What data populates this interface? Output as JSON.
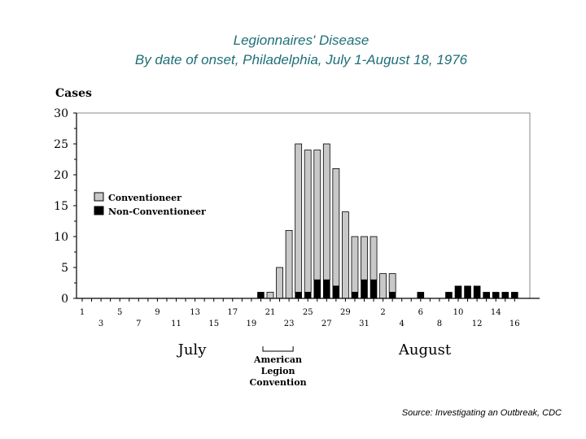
{
  "title": "Legionnaires' Disease",
  "subtitle": "By date of onset, Philadelphia, July 1-August 18, 1976",
  "source": "Source:  Investigating an Outbreak, CDC",
  "chart_data": {
    "type": "bar",
    "stacked": true,
    "ylabel": "Cases",
    "ylim": [
      0,
      30
    ],
    "yticks": [
      "0",
      "5",
      "10",
      "15",
      "20",
      "25",
      "30"
    ],
    "x_days": [
      "Jul 1",
      "Jul 2",
      "Jul 3",
      "Jul 4",
      "Jul 5",
      "Jul 6",
      "Jul 7",
      "Jul 8",
      "Jul 9",
      "Jul 10",
      "Jul 11",
      "Jul 12",
      "Jul 13",
      "Jul 14",
      "Jul 15",
      "Jul 16",
      "Jul 17",
      "Jul 18",
      "Jul 19",
      "Jul 20",
      "Jul 21",
      "Jul 22",
      "Jul 23",
      "Jul 24",
      "Jul 25",
      "Jul 26",
      "Jul 27",
      "Jul 28",
      "Jul 29",
      "Jul 30",
      "Jul 31",
      "Aug 1",
      "Aug 2",
      "Aug 3",
      "Aug 4",
      "Aug 5",
      "Aug 6",
      "Aug 7",
      "Aug 8",
      "Aug 9",
      "Aug 10",
      "Aug 11",
      "Aug 12",
      "Aug 13",
      "Aug 14",
      "Aug 15",
      "Aug 16"
    ],
    "tick_labels_top": [
      "1",
      "5",
      "9",
      "13",
      "17",
      "21",
      "25",
      "29",
      "2",
      "6",
      "10",
      "14"
    ],
    "tick_labels_bottom": [
      "3",
      "7",
      "11",
      "15",
      "19",
      "23",
      "27",
      "31",
      "4",
      "8",
      "12",
      "16"
    ],
    "month_labels": [
      "July",
      "August"
    ],
    "legend": {
      "position": "left-middle",
      "items": [
        "Conventioneer",
        "Non-Conventioneer"
      ]
    },
    "annotation": {
      "lines": [
        "American",
        "Legion",
        "Convention"
      ],
      "x_start": "Jul 21",
      "x_end": "Jul 23"
    },
    "series": [
      {
        "name": "Non-Conventioneer",
        "color": "#000000",
        "values": [
          0,
          0,
          0,
          0,
          0,
          0,
          0,
          0,
          0,
          0,
          0,
          0,
          0,
          0,
          0,
          0,
          0,
          0,
          0,
          1,
          0,
          0,
          0,
          1,
          1,
          3,
          3,
          2,
          0,
          1,
          3,
          3,
          0,
          1,
          0,
          0,
          1,
          0,
          0,
          1,
          2,
          2,
          2,
          1,
          1,
          1,
          1
        ]
      },
      {
        "name": "Conventioneer",
        "color": "#c8c8c8",
        "values": [
          0,
          0,
          0,
          0,
          0,
          0,
          0,
          0,
          0,
          0,
          0,
          0,
          0,
          0,
          0,
          0,
          0,
          0,
          0,
          0,
          1,
          5,
          11,
          24,
          23,
          21,
          22,
          19,
          14,
          9,
          7,
          7,
          4,
          3,
          0,
          0,
          0,
          0,
          0,
          0,
          0,
          0,
          0,
          0,
          0,
          0,
          0
        ]
      }
    ]
  }
}
